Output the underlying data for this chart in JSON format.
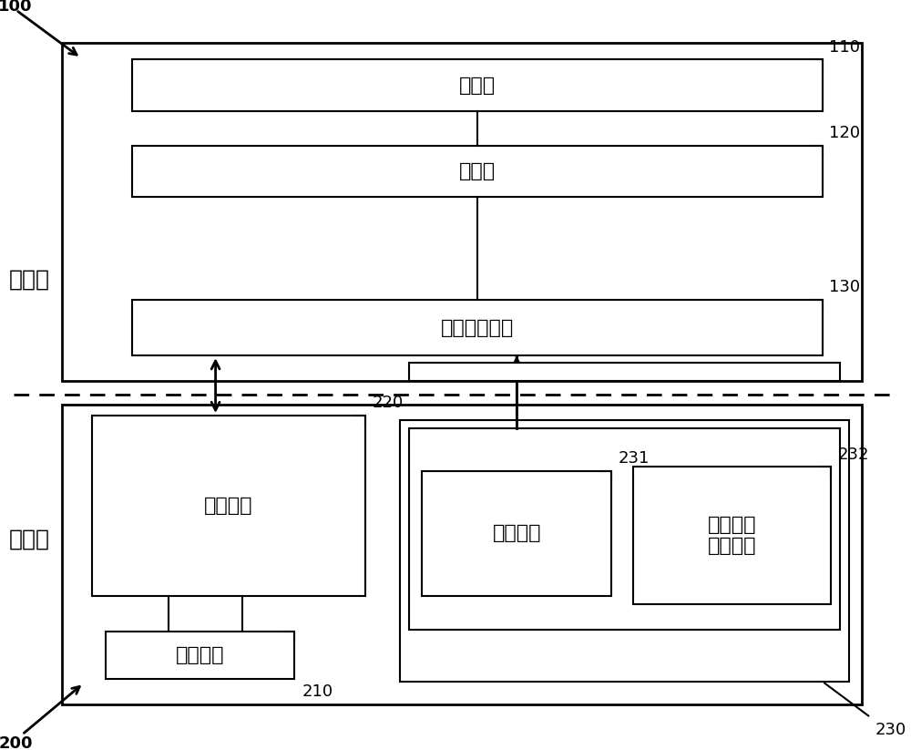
{
  "bg_color": "#ffffff",
  "line_color": "#000000",
  "fig_width": 10.0,
  "fig_height": 8.23,
  "control_end_label": "控制端",
  "device_end_label": "设备端",
  "label_100": "100",
  "label_110": "110",
  "label_120": "120",
  "label_130": "130",
  "label_200": "200",
  "label_210": "210",
  "label_220": "220",
  "label_230": "230",
  "label_231": "231",
  "label_232": "232",
  "box_storage_text": "存储器",
  "box_processor_text": "处理器",
  "box_wireless_text": "无线通信模块",
  "box_smart_center_text": "智能中控",
  "box_exec_text": "执行部件",
  "box_image_trans_text": "图传模块",
  "box_device_status_text": "设备状态\n推送模块",
  "font_size_main": 16,
  "font_size_label": 13,
  "font_size_side": 18
}
